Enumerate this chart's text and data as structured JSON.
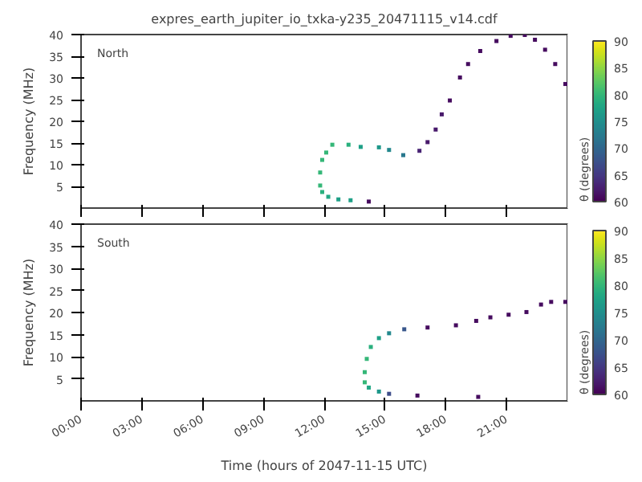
{
  "chart_data": [
    {
      "type": "scatter",
      "title": "expres_earth_jupiter_io_txka-y235_20471115_v14.cdf",
      "ylabel": "Frequency (MHz)",
      "clabel": "θ (degrees)",
      "annotations": [
        "North"
      ],
      "marker": "square",
      "tick_labels": "y",
      "grid": false,
      "x": [
        14.2,
        13.3,
        12.7,
        12.2,
        11.9,
        11.8,
        11.8,
        11.9,
        12.1,
        12.4,
        13.2,
        13.8,
        14.7,
        15.2,
        15.9,
        16.7,
        17.1,
        17.5,
        17.8,
        18.2,
        18.7,
        19.1,
        19.7,
        20.5,
        21.2,
        21.9,
        22.4,
        22.9,
        23.4,
        23.9
      ],
      "values": [
        1.5,
        1.8,
        2.0,
        2.6,
        3.7,
        5.2,
        8.2,
        11.1,
        12.8,
        14.6,
        14.6,
        14.1,
        14.0,
        13.4,
        12.2,
        13.2,
        15.2,
        18.1,
        21.6,
        24.8,
        30.1,
        33.2,
        36.2,
        38.5,
        39.7,
        39.9,
        38.8,
        36.5,
        33.2,
        28.6
      ],
      "cvalues": [
        61,
        77,
        77,
        78,
        79,
        80,
        80,
        80,
        80,
        80,
        79,
        77,
        76,
        74,
        72,
        63,
        62,
        62,
        62,
        61,
        61,
        61,
        61,
        61,
        61,
        61,
        61,
        61,
        61,
        61
      ],
      "xlim": [
        0,
        24
      ],
      "xticks": [
        0,
        3,
        6,
        9,
        12,
        15,
        18,
        21
      ],
      "ylim": [
        0,
        40
      ],
      "yticks": [
        5,
        10,
        15,
        20,
        25,
        30,
        35,
        40
      ],
      "clim": [
        60,
        90
      ],
      "cticks": [
        60,
        65,
        70,
        75,
        80,
        85,
        90
      ]
    },
    {
      "type": "scatter",
      "xlabel": "Time (hours of 2047-11-15 UTC)",
      "ylabel": "Frequency (MHz)",
      "clabel": "θ (degrees)",
      "annotations": [
        "South"
      ],
      "marker": "square",
      "grid": false,
      "x": [
        19.6,
        16.6,
        15.2,
        14.7,
        14.2,
        14.0,
        14.0,
        14.1,
        14.3,
        14.7,
        15.2,
        15.95,
        17.1,
        18.5,
        19.5,
        20.2,
        21.1,
        21.98,
        22.7,
        23.2,
        23.9
      ],
      "values": [
        0.9,
        1.2,
        1.6,
        2.1,
        3.0,
        4.2,
        6.5,
        9.5,
        12.2,
        14.2,
        15.3,
        16.2,
        16.6,
        17.1,
        18.1,
        18.9,
        19.5,
        20.1,
        21.8,
        22.4,
        22.4
      ],
      "cvalues": [
        61,
        61,
        67,
        76,
        78,
        80,
        80,
        80,
        79,
        77,
        74,
        68,
        61,
        61,
        61,
        61,
        61,
        61,
        61,
        61,
        61
      ],
      "xlim": [
        0,
        24
      ],
      "xticks": [
        {
          "value": 0,
          "label": "00:00"
        },
        {
          "value": 3,
          "label": "03:00"
        },
        {
          "value": 6,
          "label": "06:00"
        },
        {
          "value": 9,
          "label": "09:00"
        },
        {
          "value": 12,
          "label": "12:00"
        },
        {
          "value": 15,
          "label": "15:00"
        },
        {
          "value": 18,
          "label": "18:00"
        },
        {
          "value": 21,
          "label": "21:00"
        }
      ],
      "ylim": [
        0,
        40
      ],
      "yticks": [
        5,
        10,
        15,
        20,
        25,
        30,
        35,
        40
      ],
      "clim": [
        60,
        90
      ],
      "cticks": [
        60,
        65,
        70,
        75,
        80,
        85,
        90
      ]
    }
  ]
}
